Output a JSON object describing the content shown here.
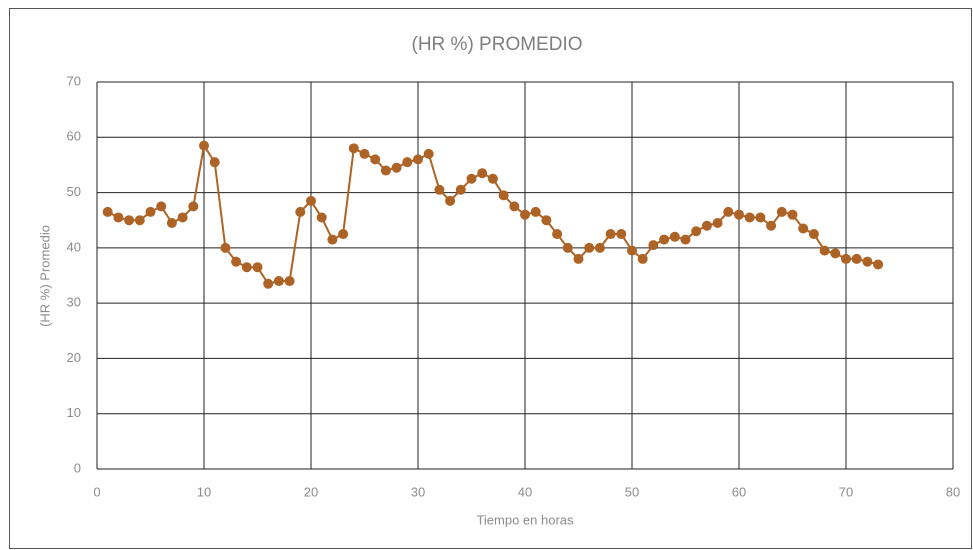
{
  "chart_data": {
    "type": "line",
    "title": "(HR %) PROMEDIO",
    "x_label": "Tiempo en horas",
    "y_label": "(HR %) Promedio",
    "x": [
      1,
      2,
      3,
      4,
      5,
      6,
      7,
      8,
      9,
      10,
      11,
      12,
      13,
      14,
      15,
      16,
      17,
      18,
      19,
      20,
      21,
      22,
      23,
      24,
      25,
      26,
      27,
      28,
      29,
      30,
      31,
      32,
      33,
      34,
      35,
      36,
      37,
      38,
      39,
      40,
      41,
      42,
      43,
      44,
      45,
      46,
      47,
      48,
      49,
      50,
      51,
      52,
      53,
      54,
      55,
      56,
      57,
      58,
      59,
      60,
      61,
      62,
      63,
      64,
      65,
      66,
      67,
      68,
      69,
      70,
      71,
      72,
      73
    ],
    "series": [
      {
        "name": "(HR %) Promedio",
        "color": "#ad6326",
        "values": [
          46.5,
          45.5,
          45,
          45,
          46.5,
          47.5,
          44.5,
          45.5,
          47.5,
          58.5,
          55.5,
          40,
          37.5,
          36.5,
          36.5,
          33.5,
          34,
          34,
          46.5,
          48.5,
          45.5,
          41.5,
          42.5,
          58,
          57,
          56,
          54,
          54.5,
          55.5,
          56,
          57,
          50.5,
          48.5,
          50.5,
          52.5,
          53.5,
          52.5,
          49.5,
          47.5,
          46,
          46.5,
          45,
          42.5,
          40,
          38,
          40,
          40,
          42.5,
          42.5,
          39.5,
          38,
          40.5,
          41.5,
          42,
          41.5,
          43,
          44,
          44.5,
          46.5,
          46,
          45.5,
          45.5,
          44,
          46.5,
          46,
          43.5,
          42.5,
          39.5,
          39,
          38,
          38,
          37.5,
          37
        ]
      }
    ],
    "xlim": [
      0,
      80
    ],
    "xticks": [
      0,
      10,
      20,
      30,
      40,
      50,
      60,
      70,
      80
    ],
    "ylim": [
      0,
      70
    ],
    "yticks": [
      0,
      10,
      20,
      30,
      40,
      50,
      60,
      70
    ],
    "grid": true
  }
}
